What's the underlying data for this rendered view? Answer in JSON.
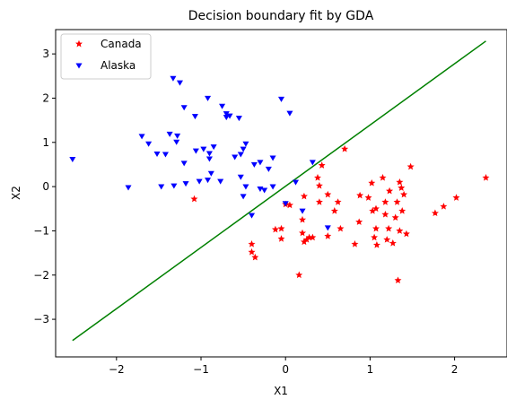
{
  "chart_data": {
    "type": "scatter",
    "title": "Decision boundary fit by GDA",
    "xlabel": "X1",
    "ylabel": "X2",
    "xlim": [
      -2.72,
      2.62
    ],
    "ylim": [
      -3.85,
      3.55
    ],
    "xticks": [
      -2,
      -1,
      0,
      1,
      2
    ],
    "yticks": [
      -3,
      -2,
      -1,
      0,
      1,
      2,
      3
    ],
    "grid": false,
    "legend_placement": "top-left",
    "series": [
      {
        "name": "Canada",
        "color": "#ff0000",
        "marker": "star",
        "points": [
          [
            -1.08,
            -0.28
          ],
          [
            -0.4,
            -1.3
          ],
          [
            -0.4,
            -1.48
          ],
          [
            -0.36,
            -1.6
          ],
          [
            -0.12,
            -0.97
          ],
          [
            -0.05,
            -0.95
          ],
          [
            -0.05,
            -1.18
          ],
          [
            0.0,
            -0.4
          ],
          [
            0.05,
            -0.42
          ],
          [
            0.16,
            -2.0
          ],
          [
            0.2,
            -0.75
          ],
          [
            0.2,
            -1.05
          ],
          [
            0.22,
            -1.25
          ],
          [
            0.22,
            -0.22
          ],
          [
            0.25,
            -1.2
          ],
          [
            0.28,
            -1.15
          ],
          [
            0.32,
            -1.15
          ],
          [
            0.38,
            0.2
          ],
          [
            0.4,
            -0.35
          ],
          [
            0.4,
            0.02
          ],
          [
            0.43,
            0.48
          ],
          [
            0.5,
            -1.12
          ],
          [
            0.5,
            -0.18
          ],
          [
            0.58,
            -0.55
          ],
          [
            0.62,
            -0.35
          ],
          [
            0.65,
            -0.95
          ],
          [
            0.7,
            0.85
          ],
          [
            0.82,
            -1.3
          ],
          [
            0.87,
            -0.8
          ],
          [
            0.88,
            -0.2
          ],
          [
            0.98,
            -0.25
          ],
          [
            1.02,
            0.08
          ],
          [
            1.03,
            -0.55
          ],
          [
            1.05,
            -1.15
          ],
          [
            1.07,
            -0.5
          ],
          [
            1.07,
            -0.95
          ],
          [
            1.08,
            -1.32
          ],
          [
            1.15,
            0.2
          ],
          [
            1.18,
            -0.35
          ],
          [
            1.18,
            -0.63
          ],
          [
            1.2,
            -1.2
          ],
          [
            1.22,
            -0.95
          ],
          [
            1.23,
            -0.1
          ],
          [
            1.27,
            -1.28
          ],
          [
            1.3,
            -0.7
          ],
          [
            1.32,
            -0.35
          ],
          [
            1.33,
            -2.12
          ],
          [
            1.35,
            0.1
          ],
          [
            1.35,
            -1.0
          ],
          [
            1.37,
            -0.03
          ],
          [
            1.38,
            -0.55
          ],
          [
            1.4,
            -0.18
          ],
          [
            1.43,
            -1.07
          ],
          [
            1.48,
            0.45
          ],
          [
            1.77,
            -0.6
          ],
          [
            1.87,
            -0.45
          ],
          [
            2.02,
            -0.25
          ],
          [
            2.37,
            0.2
          ]
        ]
      },
      {
        "name": "Alaska",
        "color": "#0000ff",
        "marker": "triangle-down",
        "points": [
          [
            -2.52,
            0.62
          ],
          [
            -1.86,
            -0.02
          ],
          [
            -1.7,
            1.14
          ],
          [
            -1.62,
            0.97
          ],
          [
            -1.52,
            0.74
          ],
          [
            -1.47,
            0.0
          ],
          [
            -1.42,
            0.73
          ],
          [
            -1.37,
            1.19
          ],
          [
            -1.33,
            2.45
          ],
          [
            -1.32,
            0.02
          ],
          [
            -1.29,
            1.01
          ],
          [
            -1.28,
            1.15
          ],
          [
            -1.25,
            2.35
          ],
          [
            -1.2,
            0.53
          ],
          [
            -1.2,
            1.79
          ],
          [
            -1.18,
            0.07
          ],
          [
            -1.07,
            1.59
          ],
          [
            -1.06,
            0.81
          ],
          [
            -1.02,
            0.12
          ],
          [
            -0.97,
            0.85
          ],
          [
            -0.92,
            0.15
          ],
          [
            -0.92,
            2.0
          ],
          [
            -0.9,
            0.63
          ],
          [
            -0.9,
            0.75
          ],
          [
            -0.88,
            0.3
          ],
          [
            -0.85,
            0.9
          ],
          [
            -0.77,
            0.12
          ],
          [
            -0.75,
            1.82
          ],
          [
            -0.7,
            1.65
          ],
          [
            -0.7,
            1.57
          ],
          [
            -0.66,
            1.6
          ],
          [
            -0.6,
            0.67
          ],
          [
            -0.55,
            1.55
          ],
          [
            -0.53,
            0.22
          ],
          [
            -0.53,
            0.73
          ],
          [
            -0.5,
            -0.22
          ],
          [
            -0.5,
            0.85
          ],
          [
            -0.47,
            0.97
          ],
          [
            -0.47,
            0.0
          ],
          [
            -0.4,
            -0.65
          ],
          [
            -0.37,
            0.5
          ],
          [
            -0.3,
            -0.05
          ],
          [
            -0.3,
            0.55
          ],
          [
            -0.25,
            -0.08
          ],
          [
            -0.2,
            0.4
          ],
          [
            -0.15,
            0.65
          ],
          [
            -0.15,
            0.0
          ],
          [
            -0.05,
            1.98
          ],
          [
            0.0,
            -0.38
          ],
          [
            0.05,
            1.66
          ],
          [
            0.12,
            0.1
          ],
          [
            0.2,
            -0.55
          ],
          [
            0.32,
            0.55
          ],
          [
            0.5,
            -0.93
          ]
        ]
      }
    ],
    "decision_boundary": {
      "color": "#008000",
      "points": [
        [
          -2.52,
          -3.48
        ],
        [
          2.37,
          3.29
        ]
      ]
    }
  }
}
